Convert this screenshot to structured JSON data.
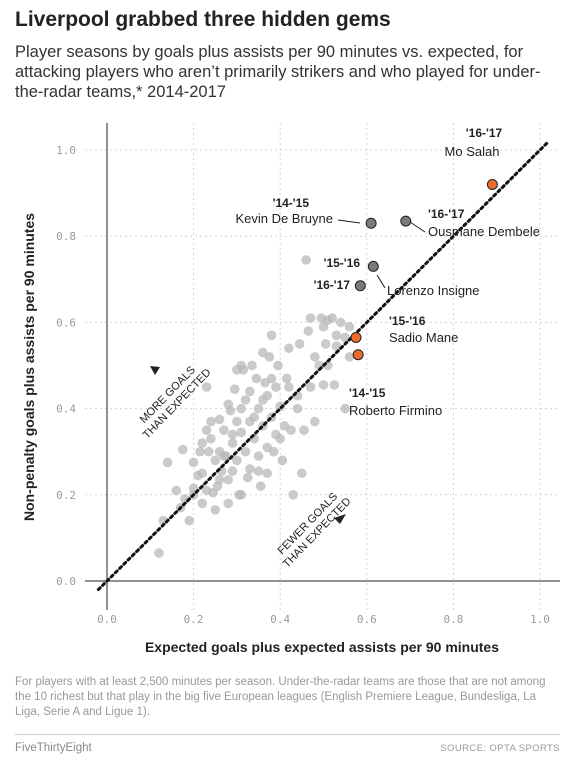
{
  "header": {
    "title": "Liverpool grabbed three hidden gems",
    "subtitle": "Player seasons by goals plus assists per 90 minutes vs. expected, for attacking players who aren’t primarily strikers and who played for under-the-radar teams,* 2014-2017"
  },
  "footer": {
    "footnote": "For players with at least 2,500 minutes per season. Under-the-radar teams are those that are not among the 10 richest but that play in the big five European leagues (English Premiere League, Bundesliga, La Liga, Serie A and Ligue 1).",
    "brand": "FiveThirtyEight",
    "source": "SOURCE: OPTA SPORTS"
  },
  "colors": {
    "background_dot": "#b8b8b8",
    "highlight_gray": "#7a7a7a",
    "highlight_orange": "#ee6a2c",
    "diagonal": "#111111"
  },
  "chart_data": {
    "type": "scatter",
    "xlabel": "Expected goals plus expected assists per 90 minutes",
    "ylabel": "Non-penalty goals plus assists per 90 minutes",
    "xlim": [
      -0.03,
      1.05
    ],
    "ylim": [
      -0.03,
      1.05
    ],
    "xticks": [
      "0.0",
      "0.2",
      "0.4",
      "0.6",
      "0.8",
      "1.0"
    ],
    "yticks": [
      "0.0",
      "0.2",
      "0.4",
      "0.6",
      "0.8",
      "1.0"
    ],
    "grid": true,
    "reference_line": "y = x",
    "annotations": {
      "above": [
        "MORE GOALS",
        "THAN EXPECTED"
      ],
      "below": [
        "FEWER GOALS",
        "THAN EXPECTED"
      ]
    },
    "highlighted": [
      {
        "season": "'16-'17",
        "name": "Mo Salah",
        "x": 0.89,
        "y": 0.92,
        "color": "orange"
      },
      {
        "season": "'14-'15",
        "name": "Kevin De Bruyne",
        "x": 0.61,
        "y": 0.83,
        "color": "gray"
      },
      {
        "season": "'16-'17",
        "name": "Ousmane Dembele",
        "x": 0.69,
        "y": 0.835,
        "color": "gray"
      },
      {
        "season": "'15-'16",
        "name": "Lorenzo Insigne",
        "x": 0.615,
        "y": 0.73,
        "color": "gray"
      },
      {
        "season": "'16-'17",
        "name": "Lorenzo Insigne",
        "x": 0.585,
        "y": 0.685,
        "color": "gray"
      },
      {
        "season": "'15-'16",
        "name": "Sadio Mane",
        "x": 0.575,
        "y": 0.565,
        "color": "orange"
      },
      {
        "season": "'14-'15",
        "name": "Roberto Firmino",
        "x": 0.58,
        "y": 0.525,
        "color": "orange"
      }
    ],
    "points": [
      [
        0.12,
        0.065
      ],
      [
        0.13,
        0.14
      ],
      [
        0.14,
        0.275
      ],
      [
        0.16,
        0.21
      ],
      [
        0.17,
        0.17
      ],
      [
        0.18,
        0.19
      ],
      [
        0.175,
        0.305
      ],
      [
        0.19,
        0.14
      ],
      [
        0.2,
        0.275
      ],
      [
        0.2,
        0.2
      ],
      [
        0.21,
        0.245
      ],
      [
        0.215,
        0.3
      ],
      [
        0.22,
        0.25
      ],
      [
        0.22,
        0.18
      ],
      [
        0.23,
        0.21
      ],
      [
        0.235,
        0.3
      ],
      [
        0.24,
        0.33
      ],
      [
        0.245,
        0.205
      ],
      [
        0.25,
        0.165
      ],
      [
        0.25,
        0.28
      ],
      [
        0.255,
        0.22
      ],
      [
        0.26,
        0.3
      ],
      [
        0.265,
        0.255
      ],
      [
        0.27,
        0.35
      ],
      [
        0.275,
        0.29
      ],
      [
        0.28,
        0.18
      ],
      [
        0.28,
        0.235
      ],
      [
        0.285,
        0.395
      ],
      [
        0.29,
        0.32
      ],
      [
        0.29,
        0.255
      ],
      [
        0.295,
        0.445
      ],
      [
        0.3,
        0.37
      ],
      [
        0.3,
        0.28
      ],
      [
        0.305,
        0.2
      ],
      [
        0.31,
        0.5
      ],
      [
        0.31,
        0.345
      ],
      [
        0.315,
        0.49
      ],
      [
        0.32,
        0.42
      ],
      [
        0.32,
        0.3
      ],
      [
        0.325,
        0.24
      ],
      [
        0.33,
        0.37
      ],
      [
        0.335,
        0.5
      ],
      [
        0.34,
        0.33
      ],
      [
        0.345,
        0.47
      ],
      [
        0.35,
        0.4
      ],
      [
        0.35,
        0.29
      ],
      [
        0.355,
        0.22
      ],
      [
        0.36,
        0.53
      ],
      [
        0.36,
        0.36
      ],
      [
        0.365,
        0.46
      ],
      [
        0.37,
        0.43
      ],
      [
        0.37,
        0.25
      ],
      [
        0.375,
        0.52
      ],
      [
        0.38,
        0.57
      ],
      [
        0.38,
        0.38
      ],
      [
        0.385,
        0.3
      ],
      [
        0.39,
        0.45
      ],
      [
        0.39,
        0.34
      ],
      [
        0.395,
        0.5
      ],
      [
        0.4,
        0.405
      ],
      [
        0.405,
        0.28
      ],
      [
        0.41,
        0.36
      ],
      [
        0.415,
        0.47
      ],
      [
        0.42,
        0.54
      ],
      [
        0.425,
        0.35
      ],
      [
        0.43,
        0.2
      ],
      [
        0.44,
        0.4
      ],
      [
        0.445,
        0.55
      ],
      [
        0.45,
        0.25
      ],
      [
        0.455,
        0.35
      ],
      [
        0.46,
        0.745
      ],
      [
        0.465,
        0.58
      ],
      [
        0.47,
        0.45
      ],
      [
        0.48,
        0.52
      ],
      [
        0.49,
        0.5
      ],
      [
        0.495,
        0.61
      ],
      [
        0.5,
        0.59
      ],
      [
        0.505,
        0.55
      ],
      [
        0.51,
        0.5
      ],
      [
        0.52,
        0.61
      ],
      [
        0.525,
        0.455
      ],
      [
        0.53,
        0.57
      ],
      [
        0.54,
        0.6
      ],
      [
        0.55,
        0.4
      ],
      [
        0.56,
        0.59
      ],
      [
        0.33,
        0.26
      ],
      [
        0.31,
        0.4
      ],
      [
        0.34,
        0.38
      ],
      [
        0.36,
        0.42
      ],
      [
        0.29,
        0.34
      ],
      [
        0.24,
        0.37
      ],
      [
        0.23,
        0.35
      ],
      [
        0.27,
        0.29
      ],
      [
        0.31,
        0.2
      ],
      [
        0.2,
        0.215
      ],
      [
        0.23,
        0.45
      ],
      [
        0.22,
        0.32
      ],
      [
        0.26,
        0.375
      ],
      [
        0.28,
        0.41
      ],
      [
        0.35,
        0.255
      ],
      [
        0.38,
        0.47
      ],
      [
        0.42,
        0.45
      ],
      [
        0.33,
        0.44
      ],
      [
        0.37,
        0.31
      ],
      [
        0.26,
        0.235
      ],
      [
        0.3,
        0.49
      ],
      [
        0.4,
        0.33
      ],
      [
        0.44,
        0.43
      ],
      [
        0.48,
        0.37
      ],
      [
        0.5,
        0.455
      ],
      [
        0.53,
        0.545
      ],
      [
        0.56,
        0.52
      ],
      [
        0.47,
        0.61
      ],
      [
        0.51,
        0.605
      ],
      [
        0.55,
        0.565
      ]
    ]
  }
}
